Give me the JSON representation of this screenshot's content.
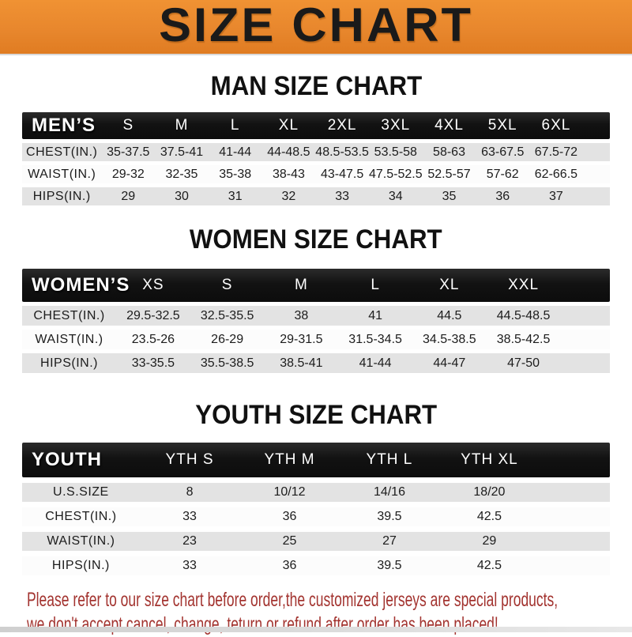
{
  "banner": {
    "title": "SIZE CHART"
  },
  "sections": [
    {
      "heading": "MAN SIZE CHART",
      "header_label": "MEN’S",
      "columns": [
        "S",
        "M",
        "L",
        "XL",
        "2XL",
        "3XL",
        "4XL",
        "5XL",
        "6XL"
      ],
      "rows": [
        {
          "label": "CHEST(IN.)",
          "values": [
            "35-37.5",
            "37.5-41",
            "41-44",
            "44-48.5",
            "48.5-53.5",
            "53.5-58",
            "58-63",
            "63-67.5",
            "67.5-72"
          ]
        },
        {
          "label": "WAIST(IN.)",
          "values": [
            "29-32",
            "32-35",
            "35-38",
            "38-43",
            "43-47.5",
            "47.5-52.5",
            "52.5-57",
            "57-62",
            "62-66.5"
          ]
        },
        {
          "label": "HIPS(IN.)",
          "values": [
            "29",
            "30",
            "31",
            "32",
            "33",
            "34",
            "35",
            "36",
            "37"
          ]
        }
      ]
    },
    {
      "heading": "WOMEN SIZE CHART",
      "header_label": "WOMEN’S",
      "columns": [
        "XS",
        "S",
        "M",
        "L",
        "XL",
        "XXL"
      ],
      "rows": [
        {
          "label": "CHEST(IN.)",
          "values": [
            "29.5-32.5",
            "32.5-35.5",
            "38",
            "41",
            "44.5",
            "44.5-48.5"
          ]
        },
        {
          "label": "WAIST(IN.)",
          "values": [
            "23.5-26",
            "26-29",
            "29-31.5",
            "31.5-34.5",
            "34.5-38.5",
            "38.5-42.5"
          ]
        },
        {
          "label": "HIPS(IN.)",
          "values": [
            "33-35.5",
            "35.5-38.5",
            "38.5-41",
            "41-44",
            "44-47",
            "47-50"
          ]
        }
      ]
    },
    {
      "heading": "YOUTH SIZE CHART",
      "header_label": "YOUTH",
      "columns": [
        "YTH S",
        "YTH M",
        "YTH L",
        "YTH XL"
      ],
      "rows": [
        {
          "label": "U.S.SIZE",
          "values": [
            "8",
            "10/12",
            "14/16",
            "18/20"
          ]
        },
        {
          "label": "CHEST(IN.)",
          "values": [
            "33",
            "36",
            "39.5",
            "42.5"
          ]
        },
        {
          "label": "WAIST(IN.)",
          "values": [
            "23",
            "25",
            "27",
            "29"
          ]
        },
        {
          "label": "HIPS(IN.)",
          "values": [
            "33",
            "36",
            "39.5",
            "42.5"
          ]
        }
      ]
    }
  ],
  "footer": {
    "line1": "Please refer to our size chart before order,the customized jerseys are special products,",
    "line2": "we don't accept cancel, change, teturn or refund after order has been placed!"
  },
  "colors": {
    "banner_orange": "#E8872D",
    "header_black": "#131313",
    "row_gray": "#E3E3E3",
    "footer_red": "#A33430"
  }
}
